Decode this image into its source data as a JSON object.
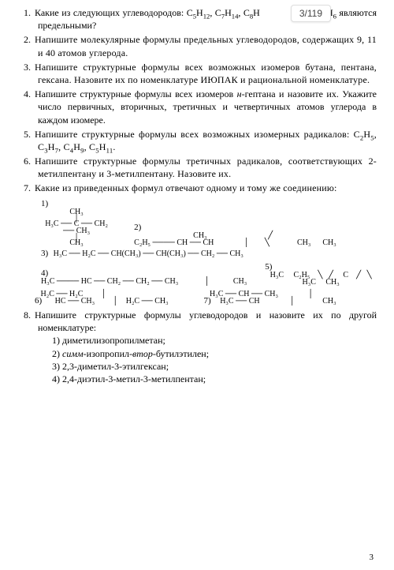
{
  "page_indicator": "3/119",
  "page_number": "3",
  "questions": [
    {
      "n": "1.",
      "html": "Какие из следующих углеводородов: C<sub>5</sub>H<sub>12</sub>, C<sub>7</sub>H<sub>14</sub>, C<sub>8</sub>H&nbsp;&nbsp;&nbsp;&nbsp;&nbsp;&nbsp;&nbsp;&nbsp;&nbsp;&nbsp;&nbsp;&nbsp;&nbsp;&nbsp;H<sub>4</sub>&nbsp;&nbsp; C<sub>8</sub>H<sub>6</sub> являются предельными?"
    },
    {
      "n": "2.",
      "html": "Напишите молекулярные формулы предельных углеводородов, содержащих 9, 11 и 40 атомов углерода."
    },
    {
      "n": "3.",
      "html": "Напишите структурные формулы всех возможных изомеров бутана, пентана, гексана. Назовите их по номенклатуре ИЮПАК и рациональной номенклатуре."
    },
    {
      "n": "4.",
      "html": "Напишите структурные формулы всех изомеров <span class=\"em\">н</span>-гептана и назовите их. Укажите число первичных, вторичных, третичных и четвертичных атомов углерода в каждом изомере."
    },
    {
      "n": "5.",
      "html": "Напишите структурные формулы всех возможных изомерных радикалов: C<sub>2</sub>H<sub>5</sub>, C<sub>3</sub>H<sub>7</sub>, C<sub>4</sub>H<sub>9</sub>, C<sub>5</sub>H<sub>11</sub>."
    },
    {
      "n": "6.",
      "html": "Напишите структурные формулы третичных радикалов, соответствующих 2-метилпентану и 3-метилпентану. Назовите их."
    },
    {
      "n": "7.",
      "html": "Какие из приведенных формул отвечают одному и тому же соединению:"
    }
  ],
  "structures": {
    "s1": {
      "label": "1)",
      "top": "CH₃",
      "main": "H₃C ── C ── CH₂ ── CH₃",
      "bot": "CH₃"
    },
    "s2": {
      "label": "2)",
      "main_left": "C₂H₅ ──── CH ── CH",
      "top_right": "CH₃",
      "bot_left": "CH₃",
      "right": "CH₃"
    },
    "s3": {
      "label": "3)",
      "main": "H₃C ── H₂C ── CH(CH₃) ── CH(CH₃) ── CH₂ ── CH₃"
    },
    "s4": {
      "label": "4)",
      "main": "H₃C ──── HC ── CH₂ ── CH₂ ── CH₃",
      "bot": "CH₃"
    },
    "s5": {
      "label": "5)",
      "tl": "H₃C",
      "tr": "C₂H₅",
      "c": "C",
      "bl": "H₃C",
      "br": "CH₃"
    },
    "s6": {
      "label": "6)",
      "l1": "H₂C ── H₂C",
      "l2": "HC ── CH₃",
      "l3": "H₂C ── CH₃"
    },
    "s7": {
      "label": "7)",
      "l1": "H₃C ── CH ── CH₃",
      "l2": "H₃C ── CH",
      "l3": "CH₃"
    }
  },
  "q8": {
    "n": "8.",
    "lead": "Напишите структурные формулы углеводородов и назовите их по другой номенклатуре:",
    "items": [
      "1) диметилизопропилметан;",
      "2) <span class=\"em\">симм</span>-изопропил-<span class=\"em\">втор</span>-бутилэтилен;",
      "3) 2,3-диметил-3-этилгексан;",
      "4) 2,4-диэтил-3-метил-3-метилпентан;"
    ]
  }
}
